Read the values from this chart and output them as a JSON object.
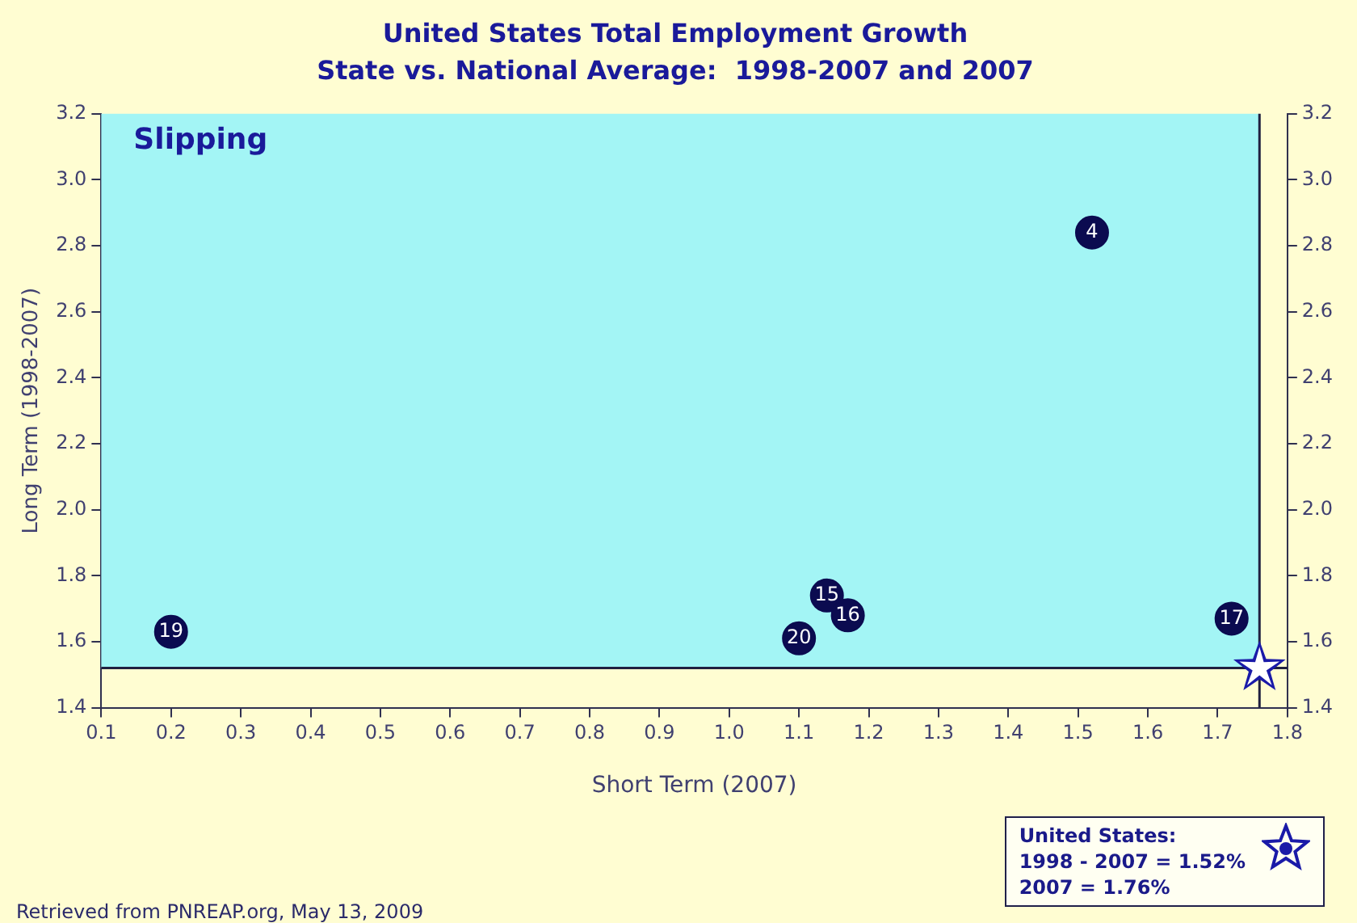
{
  "chart_data": {
    "type": "scatter",
    "title": "United States Total Employment Growth",
    "subtitle": "State vs. National Average:  1998-2007 and 2007",
    "xlabel": "Short Term (2007)",
    "ylabel": "Long Term (1998-2007)",
    "series": [
      {
        "color": "#0b0b50",
        "x": [
          1.52,
          0.2,
          1.14,
          1.17,
          1.1,
          1.72
        ],
        "values": [
          2.84,
          1.63,
          1.74,
          1.68,
          1.61,
          1.67
        ]
      },
      {
        "name": "United States:",
        "color": "#1a1aa8",
        "marker": "star",
        "x": [
          1.76
        ],
        "values": [
          1.52
        ]
      }
    ],
    "xlim": [
      0.1,
      1.8
    ],
    "xticks": [
      0.1,
      0.2,
      0.3,
      0.4,
      0.5,
      0.6,
      0.7,
      0.8,
      0.9,
      {
        "value": 1,
        "label": "1.0"
      },
      1.1,
      1.2,
      1.3,
      1.4,
      1.5,
      1.6,
      1.7,
      1.8
    ],
    "ylim": [
      1.4,
      3.2
    ],
    "yticks": [
      1.4,
      1.6,
      1.8,
      {
        "value": 2,
        "label": "2.0"
      },
      2.2,
      2.4,
      2.6,
      2.8,
      {
        "value": 3,
        "label": "3.0"
      },
      3.2
    ],
    "y2lim": [
      1.4,
      3.2
    ],
    "y2ticks": [
      1.4,
      1.6,
      1.8,
      {
        "value": 2,
        "label": "2.0"
      },
      2.2,
      2.4,
      2.6,
      2.8,
      {
        "value": 3,
        "label": "3.0"
      },
      3.2
    ],
    "ref_lines": [
      {
        "axis": "x",
        "value": 1.76,
        "color": "#202040"
      },
      {
        "axis": "y",
        "value": 1.52,
        "color": "#202040"
      }
    ],
    "bands": [
      {
        "axis": "y",
        "from": 1.52,
        "to": 3.2,
        "label": "Slipping",
        "color": "#a3f5f5"
      }
    ],
    "annotations": [
      {
        "text": "4",
        "x": 1.52,
        "y": 2.84
      },
      {
        "text": "19",
        "x": 0.2,
        "y": 1.63
      },
      {
        "text": "15",
        "x": 1.14,
        "y": 1.74
      },
      {
        "text": "16",
        "x": 1.17,
        "y": 1.68
      },
      {
        "text": "20",
        "x": 1.1,
        "y": 1.61
      },
      {
        "text": "17",
        "x": 1.72,
        "y": 1.67
      },
      "1998 - 2007 = 1.52%",
      "2007 = 1.76%",
      "Retrieved from PNREAP.org, May 13, 2009"
    ],
    "marker": "circle",
    "grid": false,
    "legend": "bottom right"
  }
}
